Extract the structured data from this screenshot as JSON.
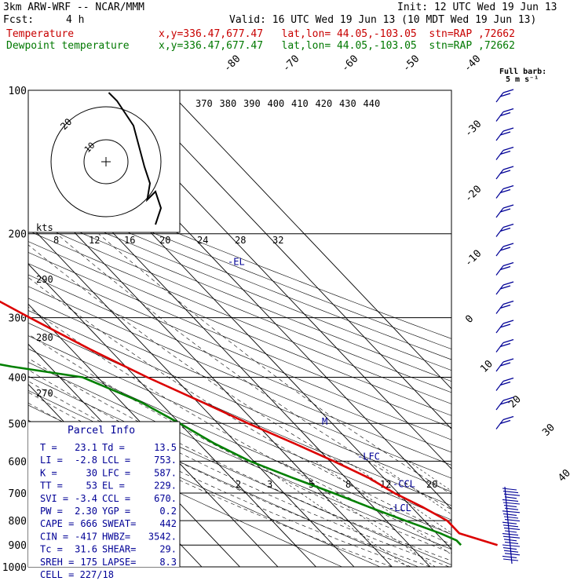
{
  "header": {
    "model": "3km ARW-WRF -- NCAR/MMM",
    "init": "Init: 12 UTC Wed 19 Jun 13",
    "fcst_label": "Fcst:",
    "fcst_value": "4 h",
    "valid": "Valid: 16 UTC Wed 19 Jun 13 (10 MDT Wed 19 Jun 13)",
    "temp_label": "Temperature",
    "temp_info": "x,y=336.47,677.47   lat,lon= 44.05,-103.05  stn=RAP ,72662",
    "dew_label": "Dewpoint temperature",
    "dew_info": "x,y=336.47,677.47   lat,lon= 44.05,-103.05  stn=RAP ,72662"
  },
  "colors": {
    "temperature": "#dc0000",
    "dewpoint": "#008000",
    "wind_barbs": "#000096",
    "grid": "#000000",
    "hodograph": "#000000"
  },
  "wind_barb_note": "Full barb: 5 m s⁻¹",
  "chart_data": {
    "type": "line",
    "pressure_levels": [
      100,
      200,
      300,
      400,
      500,
      600,
      700,
      800,
      900,
      1000
    ],
    "temperature_isotherm_labels": [
      "-80",
      "-70",
      "-60",
      "-50",
      "-40",
      "-30",
      "-20",
      "-10",
      "0",
      "10",
      "20",
      "30",
      "40"
    ],
    "theta_labels": [
      "370",
      "380",
      "390",
      "400",
      "410",
      "420",
      "430",
      "440"
    ],
    "mixing_ratio_labels": [
      "2",
      "3",
      "5",
      "8",
      "12",
      "20"
    ],
    "hodograph_ring_labels": [
      "8",
      "12",
      "16",
      "20",
      "24",
      "28",
      "32"
    ],
    "hodograph_unit": "kts",
    "left_axis_labels": [
      "290",
      "280",
      "270"
    ],
    "series": [
      {
        "name": "Temperature",
        "points": [
          [
            100,
            -53
          ],
          [
            150,
            -58
          ],
          [
            175,
            -60
          ],
          [
            200,
            -59
          ],
          [
            250,
            -52
          ],
          [
            300,
            -43
          ],
          [
            350,
            -35
          ],
          [
            400,
            -27
          ],
          [
            450,
            -19
          ],
          [
            500,
            -12
          ],
          [
            550,
            -5
          ],
          [
            600,
            1
          ],
          [
            650,
            6
          ],
          [
            700,
            9
          ],
          [
            750,
            13
          ],
          [
            800,
            16
          ],
          [
            850,
            16
          ],
          [
            900,
            23.1
          ]
        ]
      },
      {
        "name": "Dewpoint temperature",
        "points": [
          [
            100,
            -100
          ],
          [
            125,
            -98
          ],
          [
            150,
            -90
          ],
          [
            175,
            -78
          ],
          [
            200,
            -80
          ],
          [
            250,
            -72
          ],
          [
            300,
            -84
          ],
          [
            330,
            -92
          ],
          [
            350,
            -80
          ],
          [
            380,
            -60
          ],
          [
            400,
            -44
          ],
          [
            450,
            -35
          ],
          [
            500,
            -30
          ],
          [
            550,
            -26
          ],
          [
            600,
            -21
          ],
          [
            650,
            -14
          ],
          [
            700,
            -7
          ],
          [
            750,
            -1
          ],
          [
            800,
            5
          ],
          [
            850,
            11
          ],
          [
            880,
            13.5
          ],
          [
            900,
            13.5
          ]
        ]
      }
    ],
    "levels_marked": [
      {
        "label": "-EL",
        "pressure": 229
      },
      {
        "label": "-LFC",
        "pressure": 587
      },
      {
        "label": "-CCL",
        "pressure": 670
      },
      {
        "label": "-LCL",
        "pressure": 753
      }
    ],
    "hodograph_points": [
      [
        0.5,
        -8
      ],
      [
        2,
        -7
      ],
      [
        5,
        -4
      ],
      [
        7,
        1
      ],
      [
        8,
        3
      ],
      [
        7.5,
        5
      ],
      [
        9,
        4
      ],
      [
        10,
        6
      ],
      [
        9,
        8
      ]
    ]
  },
  "parcel_info": {
    "title": "Parcel Info",
    "rows": [
      {
        "l1": "T  =",
        "v1": "23.1",
        "l2": "Td =",
        "v2": "13.5"
      },
      {
        "l1": "LI =",
        "v1": "-2.8",
        "l2": "LCL =",
        "v2": "753."
      },
      {
        "l1": "K  =",
        "v1": "30",
        "l2": "LFC =",
        "v2": "587."
      },
      {
        "l1": "TT =",
        "v1": "53",
        "l2": "EL  =",
        "v2": "229."
      },
      {
        "l1": "SVI =",
        "v1": "-3.4",
        "l2": "CCL =",
        "v2": "670."
      },
      {
        "l1": "PW =",
        "v1": "2.30",
        "l2": "YGP =",
        "v2": "0.2"
      },
      {
        "l1": "CAPE =",
        "v1": "666",
        "l2": "SWEAT=",
        "v2": "442"
      },
      {
        "l1": "CIN =",
        "v1": "-417",
        "l2": "HWBZ=",
        "v2": "3542."
      },
      {
        "l1": "Tc =",
        "v1": "31.6",
        "l2": "SHEAR=",
        "v2": "29."
      },
      {
        "l1": "SREH =",
        "v1": "175",
        "l2": "LAPSE=",
        "v2": "8.3"
      }
    ],
    "cell": "CELL = 227/18"
  }
}
